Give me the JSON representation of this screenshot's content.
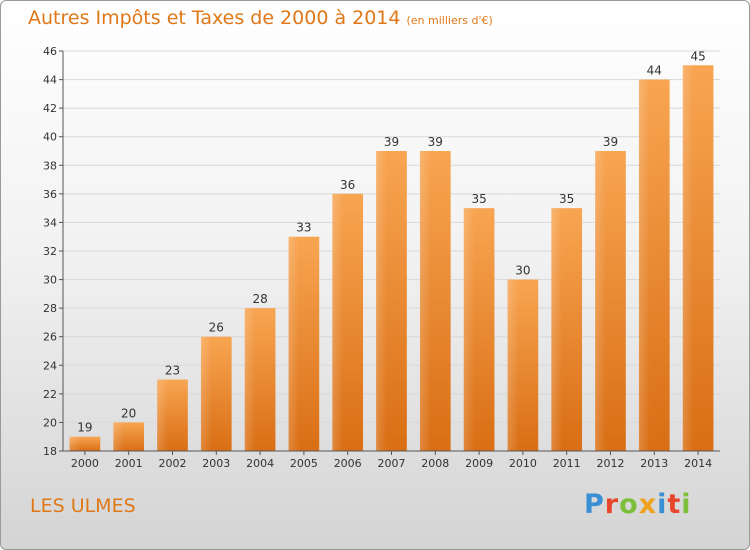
{
  "header": {
    "title": "Autres Impôts et Taxes de 2000 à 2014",
    "unit": "(en milliers d'€)"
  },
  "footer": {
    "commune": "LES ULMES",
    "logo_text": "Proxiti",
    "logo_colors": [
      "#3b8fd4",
      "#e8462a",
      "#7cbf3a",
      "#f0a11d",
      "#3b8fd4",
      "#e8462a",
      "#7cbf3a"
    ]
  },
  "chart_data": {
    "type": "bar",
    "title": "Autres Impôts et Taxes de 2000 à 2014",
    "subtitle": "(en milliers d'€)",
    "categories": [
      "2000",
      "2001",
      "2002",
      "2003",
      "2004",
      "2005",
      "2006",
      "2007",
      "2008",
      "2009",
      "2010",
      "2011",
      "2012",
      "2013",
      "2014"
    ],
    "values": [
      19,
      20,
      23,
      26,
      28,
      33,
      36,
      39,
      39,
      35,
      30,
      35,
      39,
      44,
      45
    ],
    "ylim": [
      18,
      46
    ],
    "yticks": [
      18,
      20,
      22,
      24,
      26,
      28,
      30,
      32,
      34,
      36,
      38,
      40,
      42,
      44,
      46
    ],
    "grid": true,
    "bar_color": "#f08a30",
    "data_labels": true
  }
}
